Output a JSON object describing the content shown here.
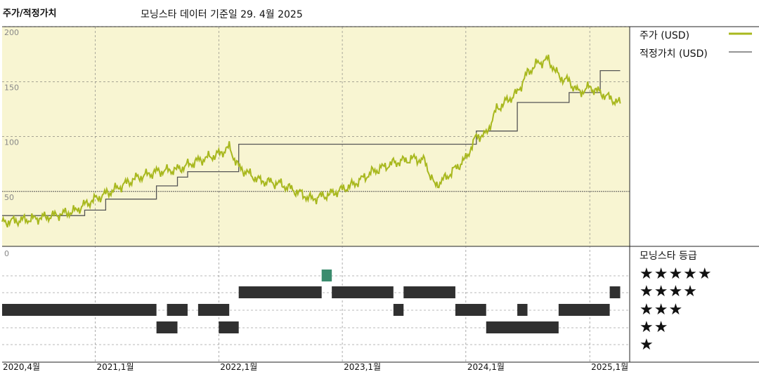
{
  "header": {
    "title": "주가/적정가치",
    "subtitle": "모닝스타 데이터 기준일 29. 4월 2025"
  },
  "legend": {
    "price_label": "주가 (USD)",
    "fair_value_label": "적정가치 (USD)",
    "rating_title": "모닝스타 등급",
    "stars": [
      "★★★★★",
      "★★★★",
      "★★★",
      "★★",
      "★"
    ]
  },
  "colors": {
    "price_line": "#a8b81e",
    "fair_value_line": "#555555",
    "plot_bg": "#f8f5d2",
    "rating_bar": "#303030",
    "rating_five_bar": "#3b8c6e"
  },
  "chart_data": [
    {
      "type": "line",
      "ylim": [
        0,
        200
      ],
      "yticks": [
        "200",
        "150",
        "100",
        "50"
      ],
      "xticks": [
        "2020,4월",
        "2021,1월",
        "2022,1월",
        "2023,1월",
        "2024,1월",
        "2025,1월"
      ],
      "series": [
        {
          "name": "주가 (USD)",
          "points": [
            [
              "2020-04",
              22
            ],
            [
              "2020-07",
              25
            ],
            [
              "2020-09",
              28
            ],
            [
              "2020-11",
              32
            ],
            [
              "2020-12",
              38
            ],
            [
              "2021-01",
              43
            ],
            [
              "2021-03",
              52
            ],
            [
              "2021-05",
              62
            ],
            [
              "2021-07",
              68
            ],
            [
              "2021-09",
              70
            ],
            [
              "2021-11",
              78
            ],
            [
              "2022-01",
              84
            ],
            [
              "2022-02",
              90
            ],
            [
              "2022-03",
              72
            ],
            [
              "2022-05",
              60
            ],
            [
              "2022-07",
              57
            ],
            [
              "2022-09",
              48
            ],
            [
              "2022-10",
              43
            ],
            [
              "2022-12",
              48
            ],
            [
              "2023-02",
              56
            ],
            [
              "2023-04",
              68
            ],
            [
              "2023-06",
              76
            ],
            [
              "2023-08",
              80
            ],
            [
              "2023-09",
              78
            ],
            [
              "2023-10",
              55
            ],
            [
              "2023-11",
              62
            ],
            [
              "2024-01",
              80
            ],
            [
              "2024-02",
              100
            ],
            [
              "2024-03",
              102
            ],
            [
              "2024-04",
              125
            ],
            [
              "2024-06",
              140
            ],
            [
              "2024-07",
              158
            ],
            [
              "2024-08",
              167
            ],
            [
              "2024-09",
              170
            ],
            [
              "2024-10",
              155
            ],
            [
              "2024-11",
              150
            ],
            [
              "2024-12",
              140
            ],
            [
              "2025-01",
              145
            ],
            [
              "2025-02",
              140
            ],
            [
              "2025-03",
              135
            ],
            [
              "2025-04",
              130
            ]
          ]
        },
        {
          "name": "적정가치 (USD)",
          "points": [
            [
              "2020-04",
              28
            ],
            [
              "2020-12",
              28
            ],
            [
              "2020-12",
              33
            ],
            [
              "2021-02",
              33
            ],
            [
              "2021-02",
              43
            ],
            [
              "2021-07",
              43
            ],
            [
              "2021-07",
              55
            ],
            [
              "2021-09",
              55
            ],
            [
              "2021-09",
              63
            ],
            [
              "2021-10",
              63
            ],
            [
              "2021-10",
              68
            ],
            [
              "2022-03",
              68
            ],
            [
              "2022-03",
              93
            ],
            [
              "2024-02",
              93
            ],
            [
              "2024-02",
              105
            ],
            [
              "2024-06",
              105
            ],
            [
              "2024-06",
              131
            ],
            [
              "2024-11",
              131
            ],
            [
              "2024-11",
              140
            ],
            [
              "2025-02",
              140
            ],
            [
              "2025-02",
              160
            ],
            [
              "2025-04",
              160
            ]
          ]
        }
      ]
    },
    {
      "type": "rating_timeline",
      "rows": [
        {
          "stars": 5,
          "segments": [
            [
              "2022-11",
              "2022-12"
            ]
          ]
        },
        {
          "stars": 4,
          "segments": [
            [
              "2022-03",
              "2022-11"
            ],
            [
              "2022-12",
              "2023-06"
            ],
            [
              "2023-07",
              "2023-12"
            ],
            [
              "2025-03",
              "2025-04"
            ]
          ]
        },
        {
          "stars": 3,
          "segments": [
            [
              "2020-04",
              "2021-07"
            ],
            [
              "2021-08",
              "2021-10"
            ],
            [
              "2021-11",
              "2022-02"
            ],
            [
              "2023-06",
              "2023-07"
            ],
            [
              "2023-12",
              "2024-03"
            ],
            [
              "2024-06",
              "2024-07"
            ],
            [
              "2024-10",
              "2025-03"
            ]
          ]
        },
        {
          "stars": 2,
          "segments": [
            [
              "2021-07",
              "2021-09"
            ],
            [
              "2022-01",
              "2022-03"
            ],
            [
              "2024-03",
              "2024-10"
            ]
          ]
        },
        {
          "stars": 1,
          "segments": []
        }
      ]
    }
  ]
}
